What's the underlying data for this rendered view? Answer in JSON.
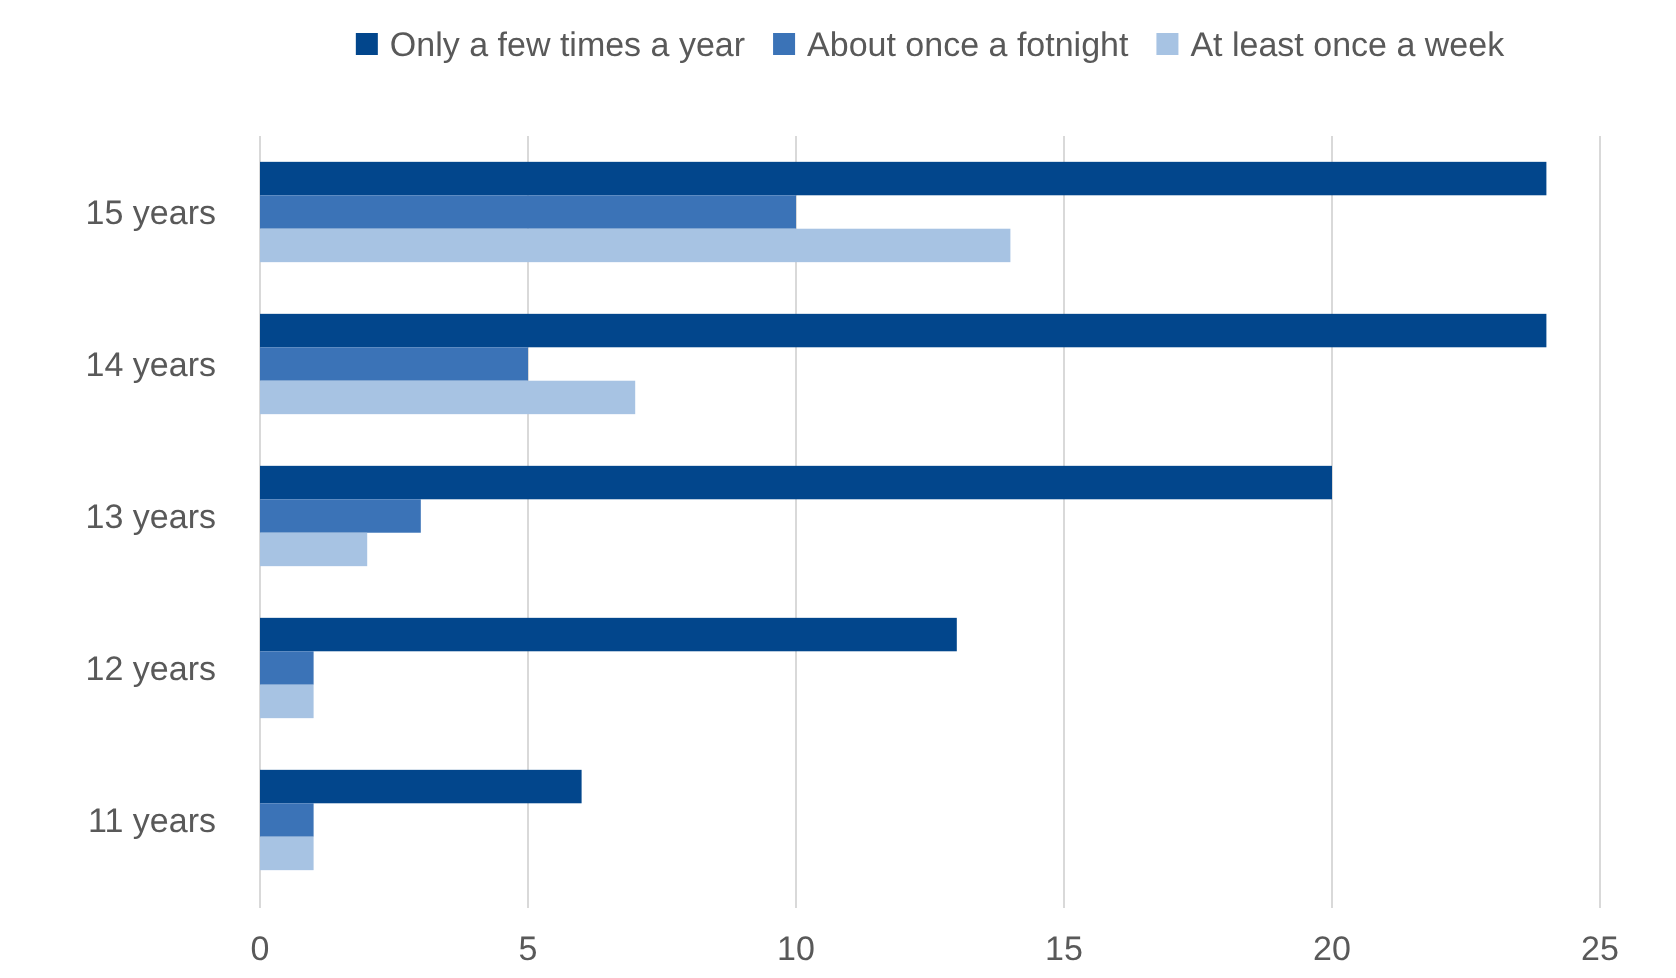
{
  "chart_data": {
    "type": "bar",
    "orientation": "horizontal",
    "categories": [
      "15 years",
      "14 years",
      "13 years",
      "12 years",
      "11 years"
    ],
    "series": [
      {
        "name": "Only a few times a year",
        "color": "#02468c",
        "values": [
          24,
          24,
          20,
          13,
          6
        ]
      },
      {
        "name": "About once a fotnight",
        "color": "#3b73b7",
        "values": [
          10,
          5,
          3,
          1,
          1
        ]
      },
      {
        "name": "At least once a week",
        "color": "#a7c3e3",
        "values": [
          14,
          7,
          2,
          1,
          1
        ]
      }
    ],
    "xlim": [
      0,
      25
    ],
    "xticks": [
      0,
      5,
      10,
      15,
      20,
      25
    ],
    "grid": "x",
    "legend": "top"
  }
}
